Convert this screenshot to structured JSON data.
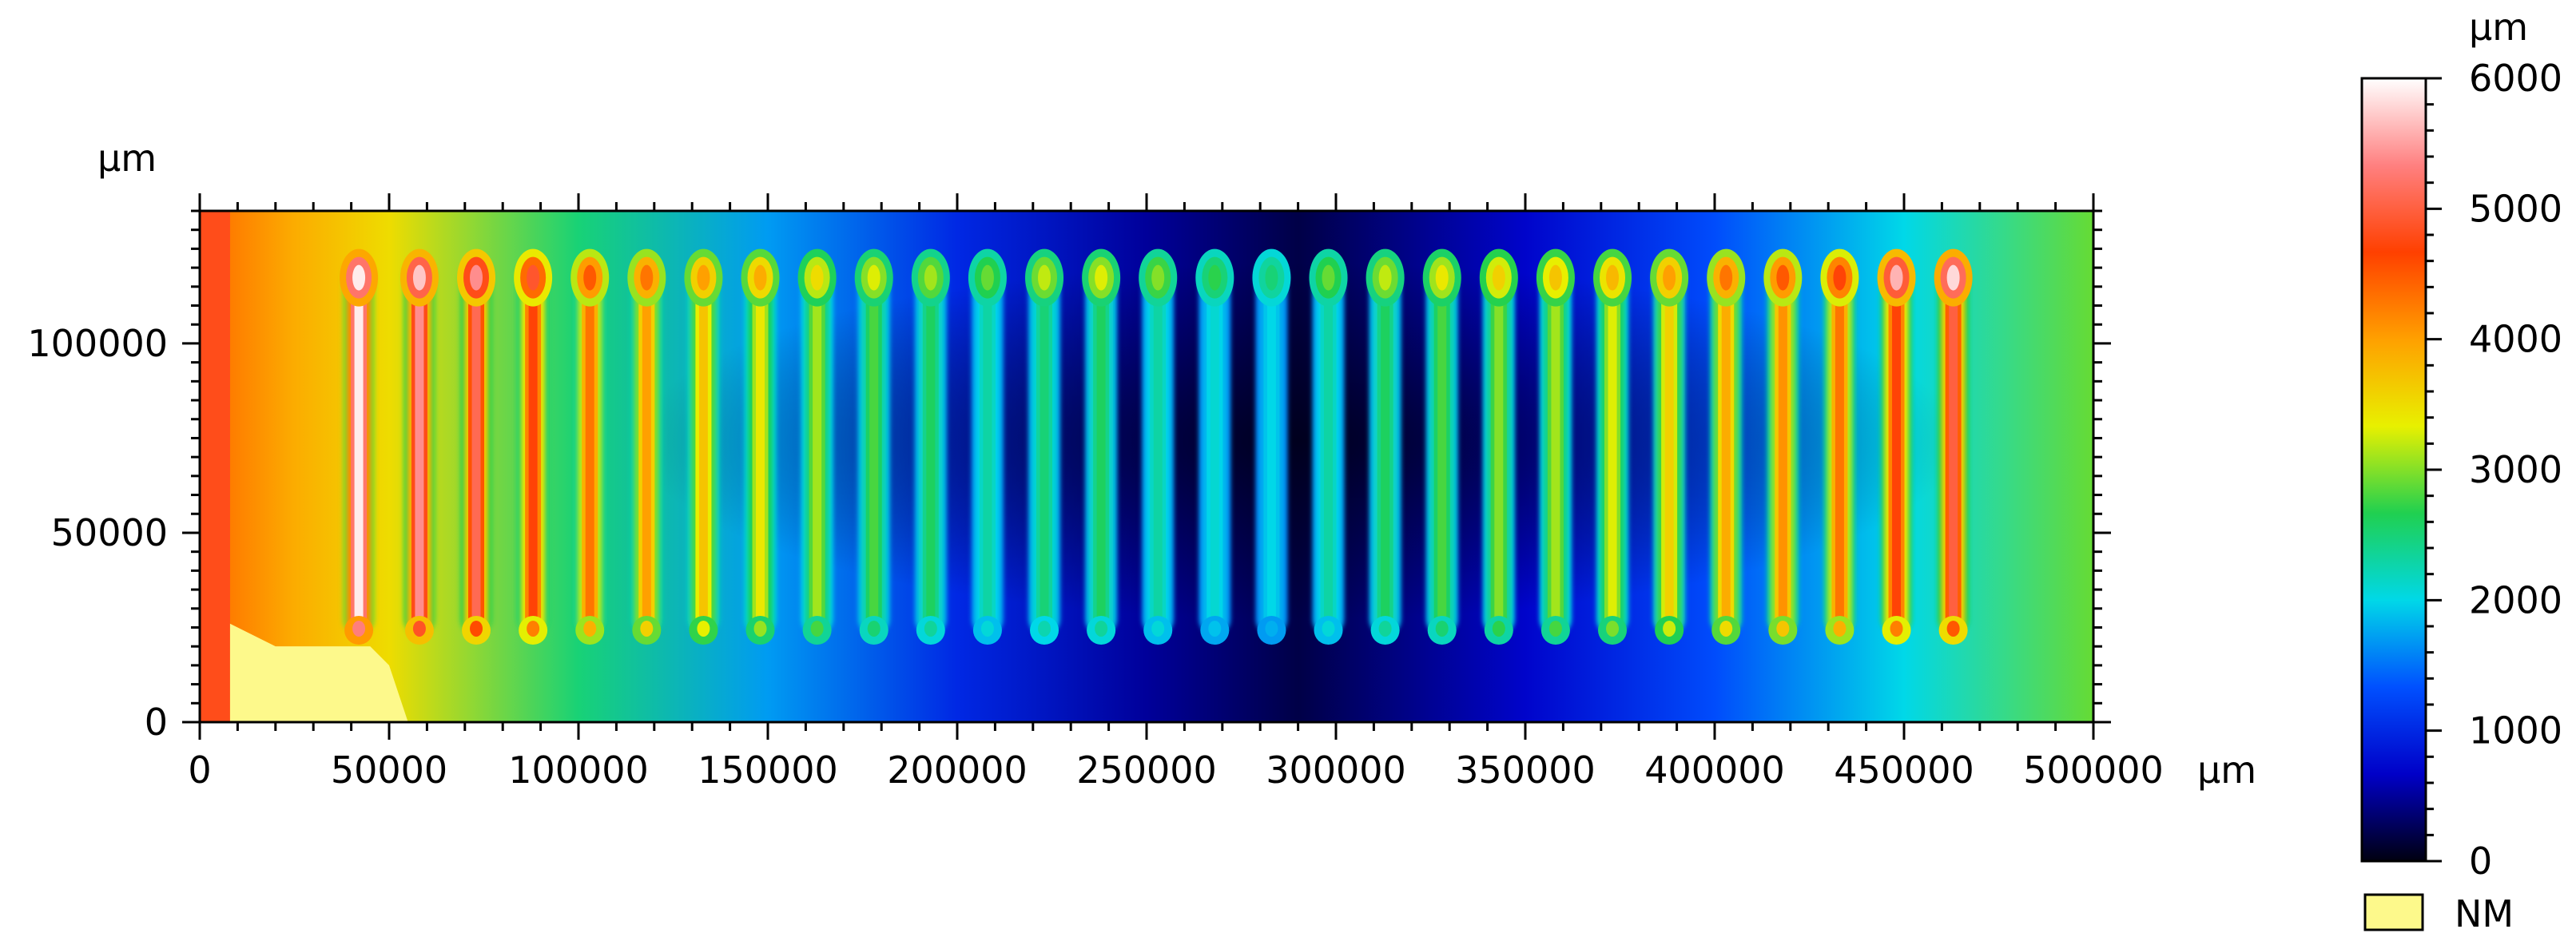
{
  "chart_data": {
    "type": "heatmap",
    "title": "",
    "x_axis": {
      "unit": "µm",
      "range": [
        0,
        500000
      ],
      "tick_labels": [
        "0",
        "50000",
        "100000",
        "150000",
        "200000",
        "250000",
        "300000",
        "350000",
        "400000",
        "450000",
        "500000"
      ]
    },
    "y_axis": {
      "unit": "µm",
      "range": [
        0,
        135000
      ],
      "tick_labels": [
        "0",
        "50000",
        "100000"
      ]
    },
    "colorbar": {
      "unit": "µm",
      "range": [
        0,
        6000
      ],
      "tick_labels": [
        "0",
        "1000",
        "2000",
        "3000",
        "4000",
        "5000",
        "6000"
      ],
      "colors": [
        "#000010",
        "#0000c8",
        "#0050ff",
        "#00d8e8",
        "#20d050",
        "#e8f000",
        "#ffa000",
        "#ff4000",
        "#ff8080",
        "#ffffff"
      ]
    },
    "legend": [
      {
        "label": "NM",
        "color": "#fdf98b"
      }
    ],
    "background_field": {
      "description_values": "height of substrate in µm, sampled across x at mid-height",
      "x": [
        0,
        25000,
        50000,
        100000,
        150000,
        200000,
        250000,
        290000,
        350000,
        400000,
        450000,
        500000
      ],
      "values": [
        4400,
        3900,
        3500,
        2500,
        1700,
        1000,
        500,
        200,
        700,
        1300,
        2000,
        2900
      ]
    },
    "ridges": {
      "x": [
        42000,
        58000,
        73000,
        88000,
        103000,
        118000,
        133000,
        148000,
        163000,
        178000,
        193000,
        208000,
        223000,
        238000,
        253000,
        268000,
        283000,
        298000,
        313000,
        328000,
        343000,
        358000,
        373000,
        388000,
        403000,
        418000,
        433000,
        448000,
        463000
      ],
      "y_range": [
        23000,
        122000
      ],
      "core_values": [
        5900,
        5400,
        5100,
        4700,
        4300,
        4000,
        3700,
        3400,
        3100,
        2800,
        2600,
        2300,
        2500,
        2600,
        2300,
        2100,
        2000,
        2300,
        2600,
        2800,
        3000,
        3100,
        3300,
        3600,
        3900,
        4100,
        4300,
        4700,
        5000
      ],
      "head_values": [
        5900,
        5700,
        5400,
        4900,
        4500,
        4300,
        4000,
        3900,
        3500,
        3300,
        3100,
        2900,
        3200,
        3300,
        3000,
        2700,
        2500,
        2900,
        3200,
        3400,
        3600,
        3700,
        3800,
        4000,
        4300,
        4500,
        4700,
        5600,
        5800
      ]
    },
    "not_measured_region": {
      "points_x": [
        0,
        8000,
        8000,
        20000,
        45000,
        50000,
        55000,
        0
      ],
      "points_y": [
        0,
        0,
        26000,
        20000,
        20000,
        15000,
        0,
        0
      ]
    }
  }
}
